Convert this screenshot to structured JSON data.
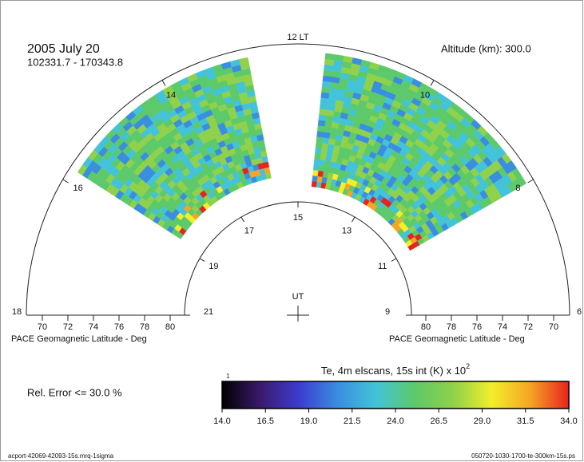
{
  "header": {
    "date": "2005 July 20",
    "time_range": "102331.7 - 170343.8",
    "altitude": "Altitude (km): 300.0"
  },
  "lt_axis": {
    "title": "12 LT",
    "labels": [
      18,
      16,
      14,
      10,
      8,
      6
    ]
  },
  "ut_axis": {
    "title": "UT",
    "labels": [
      21,
      19,
      17,
      15,
      13,
      11,
      9
    ]
  },
  "latitude_axis": {
    "title": "PACE Geomagnetic Latitude - Deg",
    "ticks": [
      70,
      72,
      74,
      76,
      78,
      80
    ]
  },
  "colorbar": {
    "title": "Te, 4m elscans, 15s int (K) x 10",
    "superscript": "2",
    "corner_label": "1",
    "lim": [
      14,
      34
    ],
    "ticks": [
      {
        "value": 14,
        "label": "14.0"
      },
      {
        "value": 16.5,
        "label": "16.5"
      },
      {
        "value": 19,
        "label": "19.0"
      },
      {
        "value": 21.5,
        "label": "21.5"
      },
      {
        "value": 24,
        "label": "24.0"
      },
      {
        "value": 26.5,
        "label": "26.5"
      },
      {
        "value": 29,
        "label": "29.0"
      },
      {
        "value": 31.5,
        "label": "31.5"
      },
      {
        "value": 34,
        "label": "34.0"
      }
    ],
    "colors": [
      "#000000",
      "#3b1a6e",
      "#3c3ccf",
      "#3a8ee0",
      "#43c3d8",
      "#5cc96a",
      "#8fd14a",
      "#f2ee2a",
      "#f5a524",
      "#e8221d"
    ]
  },
  "rel_error": "Rel. Error <= 30.0 %",
  "footer": {
    "left": "acport-42069-42093-15s.mrq-1sigma",
    "right": "050720-1030-1700-te-300km-15s.ps"
  }
}
